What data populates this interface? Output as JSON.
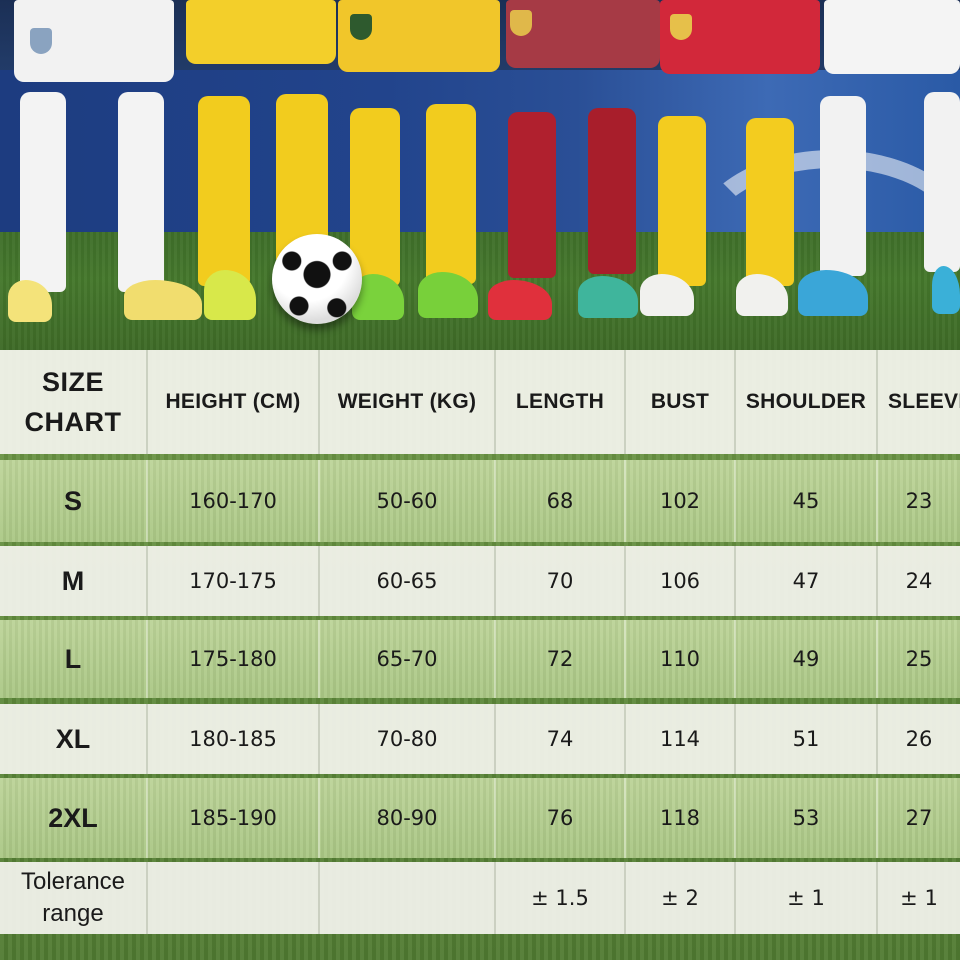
{
  "chart_data": {
    "type": "table",
    "header": {
      "size_line1": "SIZE",
      "size_line2": "CHART",
      "columns": [
        "HEIGHT (CM)",
        "WEIGHT (KG)",
        "LENGTH",
        "BUST",
        "SHOULDER",
        "SLEEVE"
      ]
    },
    "rows": [
      {
        "size": "S",
        "height": "160-170",
        "weight": "50-60",
        "length": "68",
        "bust": "102",
        "shoulder": "45",
        "sleeve": "23"
      },
      {
        "size": "M",
        "height": "170-175",
        "weight": "60-65",
        "length": "70",
        "bust": "106",
        "shoulder": "47",
        "sleeve": "24"
      },
      {
        "size": "L",
        "height": "175-180",
        "weight": "65-70",
        "length": "72",
        "bust": "110",
        "shoulder": "49",
        "sleeve": "25"
      },
      {
        "size": "XL",
        "height": "180-185",
        "weight": "70-80",
        "length": "74",
        "bust": "114",
        "shoulder": "51",
        "sleeve": "26"
      },
      {
        "size": "2XL",
        "height": "185-190",
        "weight": "80-90",
        "length": "76",
        "bust": "118",
        "shoulder": "53",
        "sleeve": "27"
      }
    ],
    "tolerance": {
      "label_line1": "Tolerance",
      "label_line2": "range",
      "height": "",
      "weight": "",
      "length": "± 1.5",
      "bust": "± 2",
      "shoulder": "± 1",
      "sleeve": "± 1"
    }
  },
  "colors": {
    "row_light": "#f4f4ee",
    "row_green": "#c4daa0",
    "text": "#1a1a1a"
  }
}
